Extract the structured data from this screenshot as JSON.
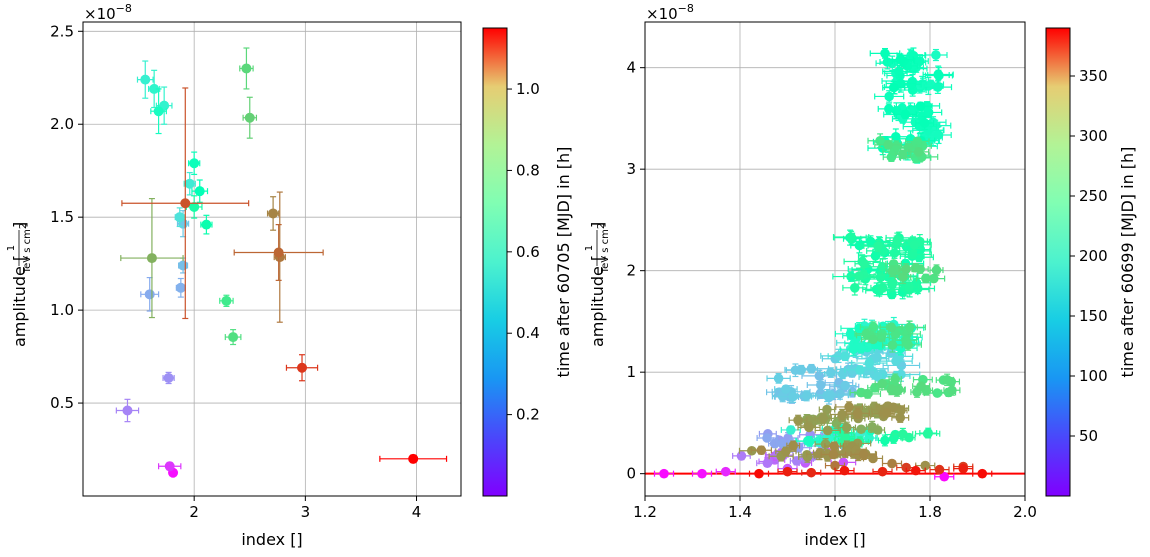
{
  "chart_data": [
    {
      "type": "scatter",
      "xlabel": "index []",
      "ylabel_prefix": "amplitude [",
      "ylabel_numerator": "1",
      "ylabel_denominator": "TeV s cm",
      "ylabel_denominator_sup": "2",
      "ylabel_suffix": "]",
      "y_multiplier": "×10",
      "y_multiplier_exp": "−8",
      "xlim": [
        1.0,
        4.4
      ],
      "ylim": [
        0.0,
        2.55
      ],
      "xticks": [
        2,
        3,
        4
      ],
      "xtick_labels": [
        "2",
        "3",
        "4"
      ],
      "yticks": [
        0.5,
        1.0,
        1.5,
        2.0,
        2.5
      ],
      "ytick_labels": [
        "0.5",
        "1.0",
        "1.5",
        "2.0",
        "2.5"
      ],
      "grid": true,
      "colorbar": {
        "label": "time after 60705 [MJD] in [h]",
        "colormap": "rainbow",
        "range": [
          0.0,
          1.15
        ],
        "ticks": [
          0.2,
          0.4,
          0.6,
          0.8,
          1.0
        ],
        "tick_labels": [
          "0.2",
          "0.4",
          "0.6",
          "0.8",
          "1.0"
        ]
      },
      "points": [
        {
          "x": 1.81,
          "y": 0.125,
          "xerr": 0.03,
          "yerr": 0.01,
          "c": 0.02
        },
        {
          "x": 1.78,
          "y": 0.16,
          "xerr": 0.1,
          "yerr": 0.02,
          "c": 0.08
        },
        {
          "x": 1.4,
          "y": 0.46,
          "xerr": 0.1,
          "yerr": 0.06,
          "c": 0.2
        },
        {
          "x": 1.77,
          "y": 0.635,
          "xerr": 0.05,
          "yerr": 0.03,
          "c": 0.22
        },
        {
          "x": 1.6,
          "y": 1.085,
          "xerr": 0.08,
          "yerr": 0.09,
          "c": 0.27
        },
        {
          "x": 1.88,
          "y": 1.12,
          "xerr": 0.04,
          "yerr": 0.05,
          "c": 0.28
        },
        {
          "x": 1.9,
          "y": 1.24,
          "xerr": 0.04,
          "yerr": 0.04,
          "c": 0.31
        },
        {
          "x": 1.9,
          "y": 1.465,
          "xerr": 0.05,
          "yerr": 0.07,
          "c": 0.33
        },
        {
          "x": 1.87,
          "y": 1.5,
          "xerr": 0.04,
          "yerr": 0.05,
          "c": 0.4
        },
        {
          "x": 1.96,
          "y": 1.68,
          "xerr": 0.05,
          "yerr": 0.06,
          "c": 0.43
        },
        {
          "x": 1.56,
          "y": 2.24,
          "xerr": 0.07,
          "yerr": 0.1,
          "c": 0.45
        },
        {
          "x": 1.73,
          "y": 2.1,
          "xerr": 0.07,
          "yerr": 0.1,
          "c": 0.46
        },
        {
          "x": 1.64,
          "y": 2.19,
          "xerr": 0.05,
          "yerr": 0.1,
          "c": 0.47
        },
        {
          "x": 1.68,
          "y": 2.07,
          "xerr": 0.07,
          "yerr": 0.12,
          "c": 0.52
        },
        {
          "x": 2.0,
          "y": 1.79,
          "xerr": 0.05,
          "yerr": 0.06,
          "c": 0.55
        },
        {
          "x": 2.05,
          "y": 1.64,
          "xerr": 0.07,
          "yerr": 0.06,
          "c": 0.57
        },
        {
          "x": 2.11,
          "y": 1.46,
          "xerr": 0.05,
          "yerr": 0.05,
          "c": 0.6
        },
        {
          "x": 2.0,
          "y": 1.555,
          "xerr": 0.07,
          "yerr": 0.06,
          "c": 0.63
        },
        {
          "x": 2.29,
          "y": 1.05,
          "xerr": 0.06,
          "yerr": 0.03,
          "c": 0.72
        },
        {
          "x": 2.35,
          "y": 0.855,
          "xerr": 0.07,
          "yerr": 0.04,
          "c": 0.76
        },
        {
          "x": 2.47,
          "y": 2.3,
          "xerr": 0.06,
          "yerr": 0.11,
          "c": 0.78
        },
        {
          "x": 2.5,
          "y": 2.035,
          "xerr": 0.06,
          "yerr": 0.11,
          "c": 0.8
        },
        {
          "x": 1.62,
          "y": 1.28,
          "xerr": 0.28,
          "yerr": 0.32,
          "c": 0.87
        },
        {
          "x": 2.71,
          "y": 1.52,
          "xerr": 0.05,
          "yerr": 0.09,
          "c": 0.95
        },
        {
          "x": 2.77,
          "y": 1.285,
          "xerr": 0.05,
          "yerr": 0.35,
          "c": 0.97
        },
        {
          "x": 2.76,
          "y": 1.31,
          "xerr": 0.4,
          "yerr": 0.15,
          "c": 1.0
        },
        {
          "x": 1.92,
          "y": 1.575,
          "xerr": 0.57,
          "yerr": 0.62,
          "c": 1.03
        },
        {
          "x": 2.97,
          "y": 0.69,
          "xerr": 0.14,
          "yerr": 0.07,
          "c": 1.07
        },
        {
          "x": 3.97,
          "y": 0.2,
          "xerr": 0.3,
          "yerr": 0.02,
          "c": 1.15
        }
      ]
    },
    {
      "type": "scatter",
      "xlabel": "index []",
      "ylabel_prefix": "amplitude [",
      "ylabel_numerator": "1",
      "ylabel_denominator": "TeV s cm",
      "ylabel_denominator_sup": "2",
      "ylabel_suffix": "]",
      "y_multiplier": "×10",
      "y_multiplier_exp": "−8",
      "xlim": [
        1.2,
        2.0
      ],
      "ylim": [
        -0.22,
        4.45
      ],
      "xticks": [
        1.2,
        1.4,
        1.6,
        1.8,
        2.0
      ],
      "xtick_labels": [
        "1.2",
        "1.4",
        "1.6",
        "1.8",
        "2.0"
      ],
      "yticks": [
        0,
        1,
        2,
        3,
        4
      ],
      "ytick_labels": [
        "0",
        "1",
        "2",
        "3",
        "4"
      ],
      "grid": true,
      "colorbar": {
        "label": "time after 60699 [MJD] in [h]",
        "colormap": "rainbow",
        "range": [
          0,
          390
        ],
        "ticks": [
          50,
          100,
          150,
          200,
          250,
          300,
          350
        ],
        "tick_labels": [
          "50",
          "100",
          "150",
          "200",
          "250",
          "300",
          "350"
        ]
      },
      "clusters": [
        {
          "x": [
            1.7,
            1.82
          ],
          "y": [
            3.1,
            4.15
          ],
          "c": [
            175,
            195
          ],
          "n": 70,
          "xerr": 0.025,
          "yerr": 0.06
        },
        {
          "x": [
            1.69,
            1.8
          ],
          "y": [
            3.1,
            3.3
          ],
          "c": [
            245,
            260
          ],
          "n": 15,
          "xerr": 0.025,
          "yerr": 0.05
        },
        {
          "x": [
            1.63,
            1.78
          ],
          "y": [
            1.75,
            2.35
          ],
          "c": [
            200,
            225
          ],
          "n": 55,
          "xerr": 0.03,
          "yerr": 0.06
        },
        {
          "x": [
            1.72,
            1.82
          ],
          "y": [
            1.92,
            2.08
          ],
          "c": [
            250,
            265
          ],
          "n": 10,
          "xerr": 0.02,
          "yerr": 0.05
        },
        {
          "x": [
            1.63,
            1.77
          ],
          "y": [
            1.2,
            1.5
          ],
          "c": [
            160,
            180
          ],
          "n": 30,
          "xerr": 0.03,
          "yerr": 0.05
        },
        {
          "x": [
            1.66,
            1.76
          ],
          "y": [
            1.25,
            1.45
          ],
          "c": [
            245,
            258
          ],
          "n": 15,
          "xerr": 0.025,
          "yerr": 0.05
        },
        {
          "x": [
            1.6,
            1.75
          ],
          "y": [
            0.95,
            1.3
          ],
          "c": [
            115,
            135
          ],
          "n": 30,
          "xerr": 0.03,
          "yerr": 0.05
        },
        {
          "x": [
            1.48,
            1.65
          ],
          "y": [
            0.75,
            1.05
          ],
          "c": [
            100,
            118
          ],
          "n": 30,
          "xerr": 0.03,
          "yerr": 0.05
        },
        {
          "x": [
            1.64,
            1.85
          ],
          "y": [
            0.78,
            0.95
          ],
          "c": [
            248,
            262
          ],
          "n": 20,
          "xerr": 0.02,
          "yerr": 0.04
        },
        {
          "x": [
            1.57,
            1.74
          ],
          "y": [
            0.55,
            0.68
          ],
          "c": [
            300,
            318
          ],
          "n": 25,
          "xerr": 0.02,
          "yerr": 0.04
        },
        {
          "x": [
            1.52,
            1.7
          ],
          "y": [
            0.42,
            0.55
          ],
          "c": [
            295,
            312
          ],
          "n": 20,
          "xerr": 0.02,
          "yerr": 0.04
        },
        {
          "x": [
            1.5,
            1.68
          ],
          "y": [
            0.3,
            0.45
          ],
          "c": [
            150,
            180
          ],
          "n": 20,
          "xerr": 0.02,
          "yerr": 0.04
        },
        {
          "x": [
            1.45,
            1.65
          ],
          "y": [
            0.25,
            0.4
          ],
          "c": [
            70,
            95
          ],
          "n": 20,
          "xerr": 0.02,
          "yerr": 0.04
        },
        {
          "x": [
            1.42,
            1.7
          ],
          "y": [
            0.15,
            0.3
          ],
          "c": [
            305,
            322
          ],
          "n": 25,
          "xerr": 0.02,
          "yerr": 0.04
        },
        {
          "x": [
            1.4,
            1.62
          ],
          "y": [
            0.1,
            0.22
          ],
          "c": [
            40,
            70
          ],
          "n": 15,
          "xerr": 0.02,
          "yerr": 0.03
        },
        {
          "x": [
            1.6,
            1.8
          ],
          "y": [
            0.3,
            0.42
          ],
          "c": [
            200,
            230
          ],
          "n": 15,
          "xerr": 0.02,
          "yerr": 0.04
        }
      ],
      "points": [
        {
          "x": 1.24,
          "y": 0.0,
          "xerr": 0.02,
          "yerr": 0.01,
          "c": 5
        },
        {
          "x": 1.32,
          "y": 0.0,
          "xerr": 0.02,
          "yerr": 0.01,
          "c": 8
        },
        {
          "x": 1.83,
          "y": -0.03,
          "xerr": 0.02,
          "yerr": 0.01,
          "c": 3
        },
        {
          "x": 1.37,
          "y": 0.02,
          "xerr": 0.02,
          "yerr": 0.01,
          "c": 20
        },
        {
          "x": 1.44,
          "y": 0.0,
          "xerr": 0.02,
          "yerr": 0.01,
          "c": 385
        },
        {
          "x": 1.5,
          "y": 0.02,
          "xerr": 0.02,
          "yerr": 0.01,
          "c": 375
        },
        {
          "x": 1.55,
          "y": 0.01,
          "xerr": 0.02,
          "yerr": 0.01,
          "c": 370
        },
        {
          "x": 1.62,
          "y": 0.03,
          "xerr": 0.02,
          "yerr": 0.01,
          "c": 378
        },
        {
          "x": 1.7,
          "y": 0.02,
          "xerr": 0.02,
          "yerr": 0.01,
          "c": 372
        },
        {
          "x": 1.77,
          "y": 0.03,
          "xerr": 0.02,
          "yerr": 0.01,
          "c": 380
        },
        {
          "x": 1.82,
          "y": 0.04,
          "xerr": 0.02,
          "yerr": 0.01,
          "c": 365
        },
        {
          "x": 1.87,
          "y": 0.05,
          "xerr": 0.02,
          "yerr": 0.01,
          "c": 375
        },
        {
          "x": 1.91,
          "y": 0.0,
          "xerr": 0.02,
          "yerr": 0.01,
          "c": 385
        },
        {
          "x": 1.87,
          "y": 0.07,
          "xerr": 0.02,
          "yerr": 0.01,
          "c": 360
        },
        {
          "x": 1.6,
          "y": 0.08,
          "xerr": 0.02,
          "yerr": 0.02,
          "c": 330
        },
        {
          "x": 1.72,
          "y": 0.1,
          "xerr": 0.02,
          "yerr": 0.02,
          "c": 325
        },
        {
          "x": 1.68,
          "y": 0.15,
          "xerr": 0.02,
          "yerr": 0.02,
          "c": 318
        },
        {
          "x": 1.79,
          "y": 0.08,
          "xerr": 0.02,
          "yerr": 0.02,
          "c": 315
        },
        {
          "x": 1.75,
          "y": 0.06,
          "xerr": 0.02,
          "yerr": 0.01,
          "c": 360
        },
        {
          "x": 1.5,
          "y": 0.05,
          "xerr": 0.02,
          "yerr": 0.02,
          "c": 45
        },
        {
          "x": 1.46,
          "y": 0.12,
          "xerr": 0.02,
          "yerr": 0.02,
          "c": 55
        }
      ]
    }
  ]
}
